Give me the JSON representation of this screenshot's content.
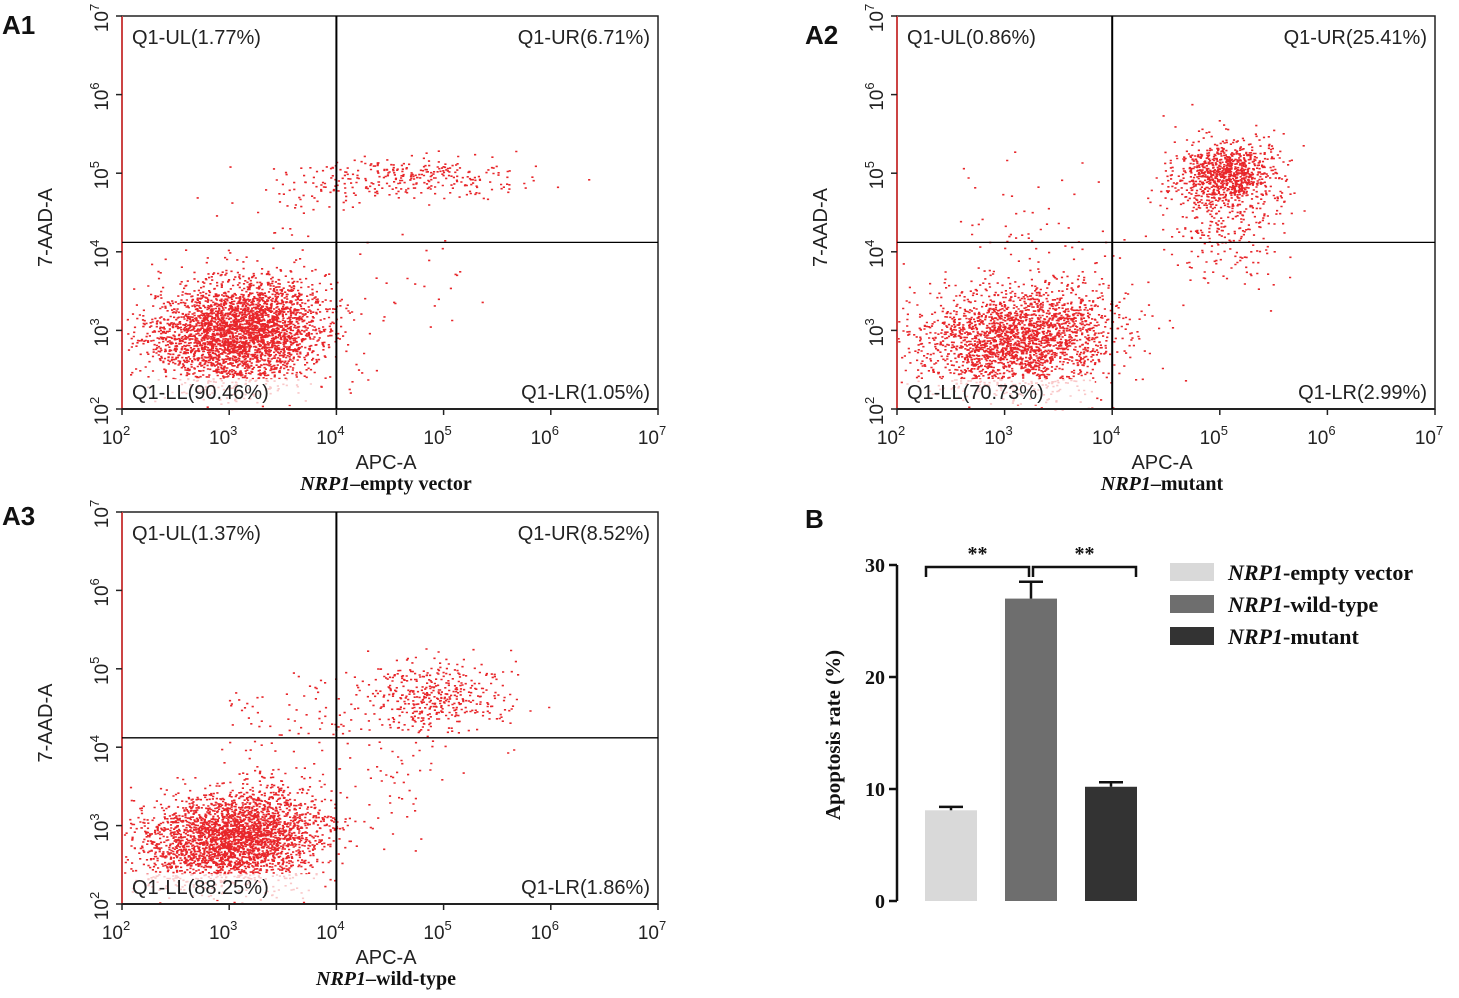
{
  "figure_panels": {
    "A1": "A1",
    "A2": "A2",
    "A3": "A3",
    "B": "B"
  },
  "chart_data": [
    {
      "id": "A1",
      "type": "scatter",
      "panel_label": "A1",
      "title_italic": "NRP1",
      "title_rest": "–empty vector",
      "xlabel": "APC-A",
      "ylabel": "7-AAD-A",
      "x_scale": "log",
      "y_scale": "log",
      "xlim_exp": [
        2,
        7
      ],
      "ylim_exp": [
        2,
        7
      ],
      "tick_base": "10",
      "x_ticks_exp": [
        "2",
        "3",
        "4",
        "5",
        "6",
        "7"
      ],
      "y_ticks_exp": [
        "2",
        "3",
        "4",
        "5",
        "6",
        "7"
      ],
      "gate_x_exp": 4.0,
      "gate_y_exp": 4.12,
      "quadrants": {
        "UL": "Q1-UL(1.77%)",
        "UR": "Q1-UR(6.71%)",
        "LL": "Q1-LL(90.46%)",
        "LR": "Q1-LR(1.05%)"
      },
      "percentages": {
        "UL": 1.77,
        "UR": 6.71,
        "LL": 90.46,
        "LR": 1.05
      },
      "point_color": "#e8262a",
      "clusters": [
        {
          "cx": 3.0,
          "cy": 2.95,
          "sx": 0.38,
          "sy": 0.33,
          "n": 2600
        },
        {
          "cx": 3.45,
          "cy": 3.15,
          "sx": 0.28,
          "sy": 0.3,
          "n": 700
        },
        {
          "cx": 4.7,
          "cy": 4.95,
          "sx": 0.5,
          "sy": 0.13,
          "n": 300
        },
        {
          "cx": 3.6,
          "cy": 4.6,
          "sx": 0.3,
          "sy": 0.22,
          "n": 40
        },
        {
          "cx": 4.7,
          "cy": 3.5,
          "sx": 0.4,
          "sy": 0.3,
          "n": 25
        }
      ]
    },
    {
      "id": "A2",
      "type": "scatter",
      "panel_label": "A2",
      "title_italic": "NRP1",
      "title_rest": "–mutant",
      "xlabel": "APC-A",
      "ylabel": "7-AAD-A",
      "x_scale": "log",
      "y_scale": "log",
      "xlim_exp": [
        2,
        7
      ],
      "ylim_exp": [
        2,
        7
      ],
      "tick_base": "10",
      "x_ticks_exp": [
        "2",
        "3",
        "4",
        "5",
        "6",
        "7"
      ],
      "y_ticks_exp": [
        "2",
        "3",
        "4",
        "5",
        "6",
        "7"
      ],
      "gate_x_exp": 4.0,
      "gate_y_exp": 4.12,
      "quadrants": {
        "UL": "Q1-UL(0.86%)",
        "UR": "Q1-UR(25.41%)",
        "LL": "Q1-LL(70.73%)",
        "LR": "Q1-LR(2.99%)"
      },
      "percentages": {
        "UL": 0.86,
        "UR": 25.41,
        "LL": 70.73,
        "LR": 2.99
      },
      "point_color": "#e8262a",
      "clusters": [
        {
          "cx": 3.05,
          "cy": 2.85,
          "sx": 0.45,
          "sy": 0.35,
          "n": 2000
        },
        {
          "cx": 3.5,
          "cy": 3.1,
          "sx": 0.3,
          "sy": 0.3,
          "n": 400
        },
        {
          "cx": 5.05,
          "cy": 5.0,
          "sx": 0.22,
          "sy": 0.2,
          "n": 900
        },
        {
          "cx": 5.0,
          "cy": 4.5,
          "sx": 0.3,
          "sy": 0.45,
          "n": 300
        },
        {
          "cx": 3.3,
          "cy": 4.2,
          "sx": 0.4,
          "sy": 0.4,
          "n": 60
        }
      ]
    },
    {
      "id": "A3",
      "type": "scatter",
      "panel_label": "A3",
      "title_italic": "NRP1",
      "title_rest": "–wild-type",
      "xlabel": "APC-A",
      "ylabel": "7-AAD-A",
      "x_scale": "log",
      "y_scale": "log",
      "xlim_exp": [
        2,
        7
      ],
      "ylim_exp": [
        2,
        7
      ],
      "tick_base": "10",
      "x_ticks_exp": [
        "2",
        "3",
        "4",
        "5",
        "6",
        "7"
      ],
      "y_ticks_exp": [
        "2",
        "3",
        "4",
        "5",
        "6",
        "7"
      ],
      "gate_x_exp": 4.0,
      "gate_y_exp": 4.12,
      "quadrants": {
        "UL": "Q1-UL(1.37%)",
        "UR": "Q1-UR(8.52%)",
        "LL": "Q1-LL(88.25%)",
        "LR": "Q1-LR(1.86%)"
      },
      "percentages": {
        "UL": 1.37,
        "UR": 8.52,
        "LL": 88.25,
        "LR": 1.86
      },
      "point_color": "#e8262a",
      "clusters": [
        {
          "cx": 2.95,
          "cy": 2.8,
          "sx": 0.4,
          "sy": 0.3,
          "n": 2400
        },
        {
          "cx": 3.4,
          "cy": 3.05,
          "sx": 0.3,
          "sy": 0.28,
          "n": 600
        },
        {
          "cx": 4.9,
          "cy": 4.65,
          "sx": 0.35,
          "sy": 0.25,
          "n": 450
        },
        {
          "cx": 3.6,
          "cy": 4.35,
          "sx": 0.35,
          "sy": 0.25,
          "n": 70
        },
        {
          "cx": 4.5,
          "cy": 3.5,
          "sx": 0.3,
          "sy": 0.35,
          "n": 45
        }
      ]
    },
    {
      "id": "B",
      "type": "bar",
      "panel_label": "B",
      "ylabel": "Apoptosis rate (%)",
      "ylim": [
        0,
        30
      ],
      "y_ticks": [
        "0",
        "10",
        "20",
        "30"
      ],
      "categories": [
        "NRP1-empty vector",
        "NRP1-wild-type",
        "NRP1-mutant"
      ],
      "values": [
        8.1,
        27.0,
        10.2
      ],
      "errors": [
        0.3,
        1.5,
        0.4
      ],
      "colors": [
        "#d9d9d9",
        "#6e6e6e",
        "#333333"
      ],
      "legend": [
        {
          "italic": "NRP1",
          "rest": "-empty vector"
        },
        {
          "italic": "NRP1",
          "rest": "-wild-type"
        },
        {
          "italic": "NRP1",
          "rest": "-mutant"
        }
      ],
      "significance": [
        {
          "from": 0,
          "to": 1,
          "label": "**"
        },
        {
          "from": 1,
          "to": 2,
          "label": "**"
        }
      ]
    }
  ]
}
